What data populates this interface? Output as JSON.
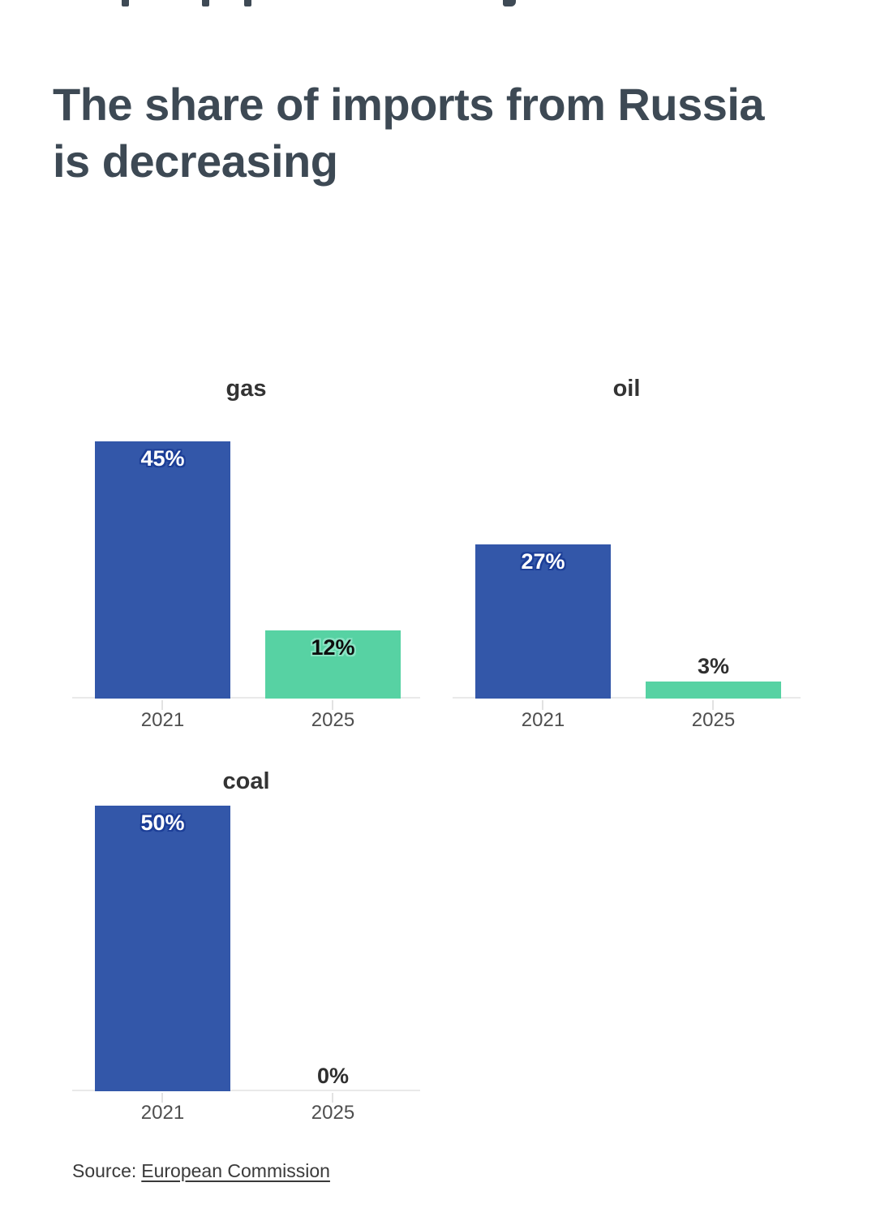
{
  "header": {
    "title_line1": "The share of imports from Russia",
    "title_line2": "is decreasing"
  },
  "footer": {
    "source_prefix": "Source:",
    "source_link_label": "European Commission"
  },
  "chart_data": {
    "type": "bar",
    "layout": "small_multiples",
    "categories": [
      "2021",
      "2025"
    ],
    "panels": [
      {
        "title": "gas",
        "values": [
          45,
          12
        ],
        "labels": [
          "45%",
          "12%"
        ]
      },
      {
        "title": "oil",
        "values": [
          27,
          3
        ],
        "labels": [
          "27%",
          "3%"
        ]
      },
      {
        "title": "coal",
        "values": [
          50,
          0
        ],
        "labels": [
          "50%",
          "0%"
        ]
      }
    ],
    "unit": "%",
    "ylim": [
      0,
      50
    ],
    "grid": "off",
    "legend": "none",
    "value_label_position": "inside_top_or_above_when_small",
    "colors": {
      "bar_2021": "#3357a9",
      "bar_2025": "#57d2a3",
      "halo_on_blue": "#1c3e97",
      "halo_on_green": "#8ae4c4",
      "title": "#3d4954",
      "panel_title": "#333333",
      "axis_line": "#e9e9e9",
      "year_label": "#4f4f4f",
      "source_text": "#3a3a3a"
    }
  }
}
